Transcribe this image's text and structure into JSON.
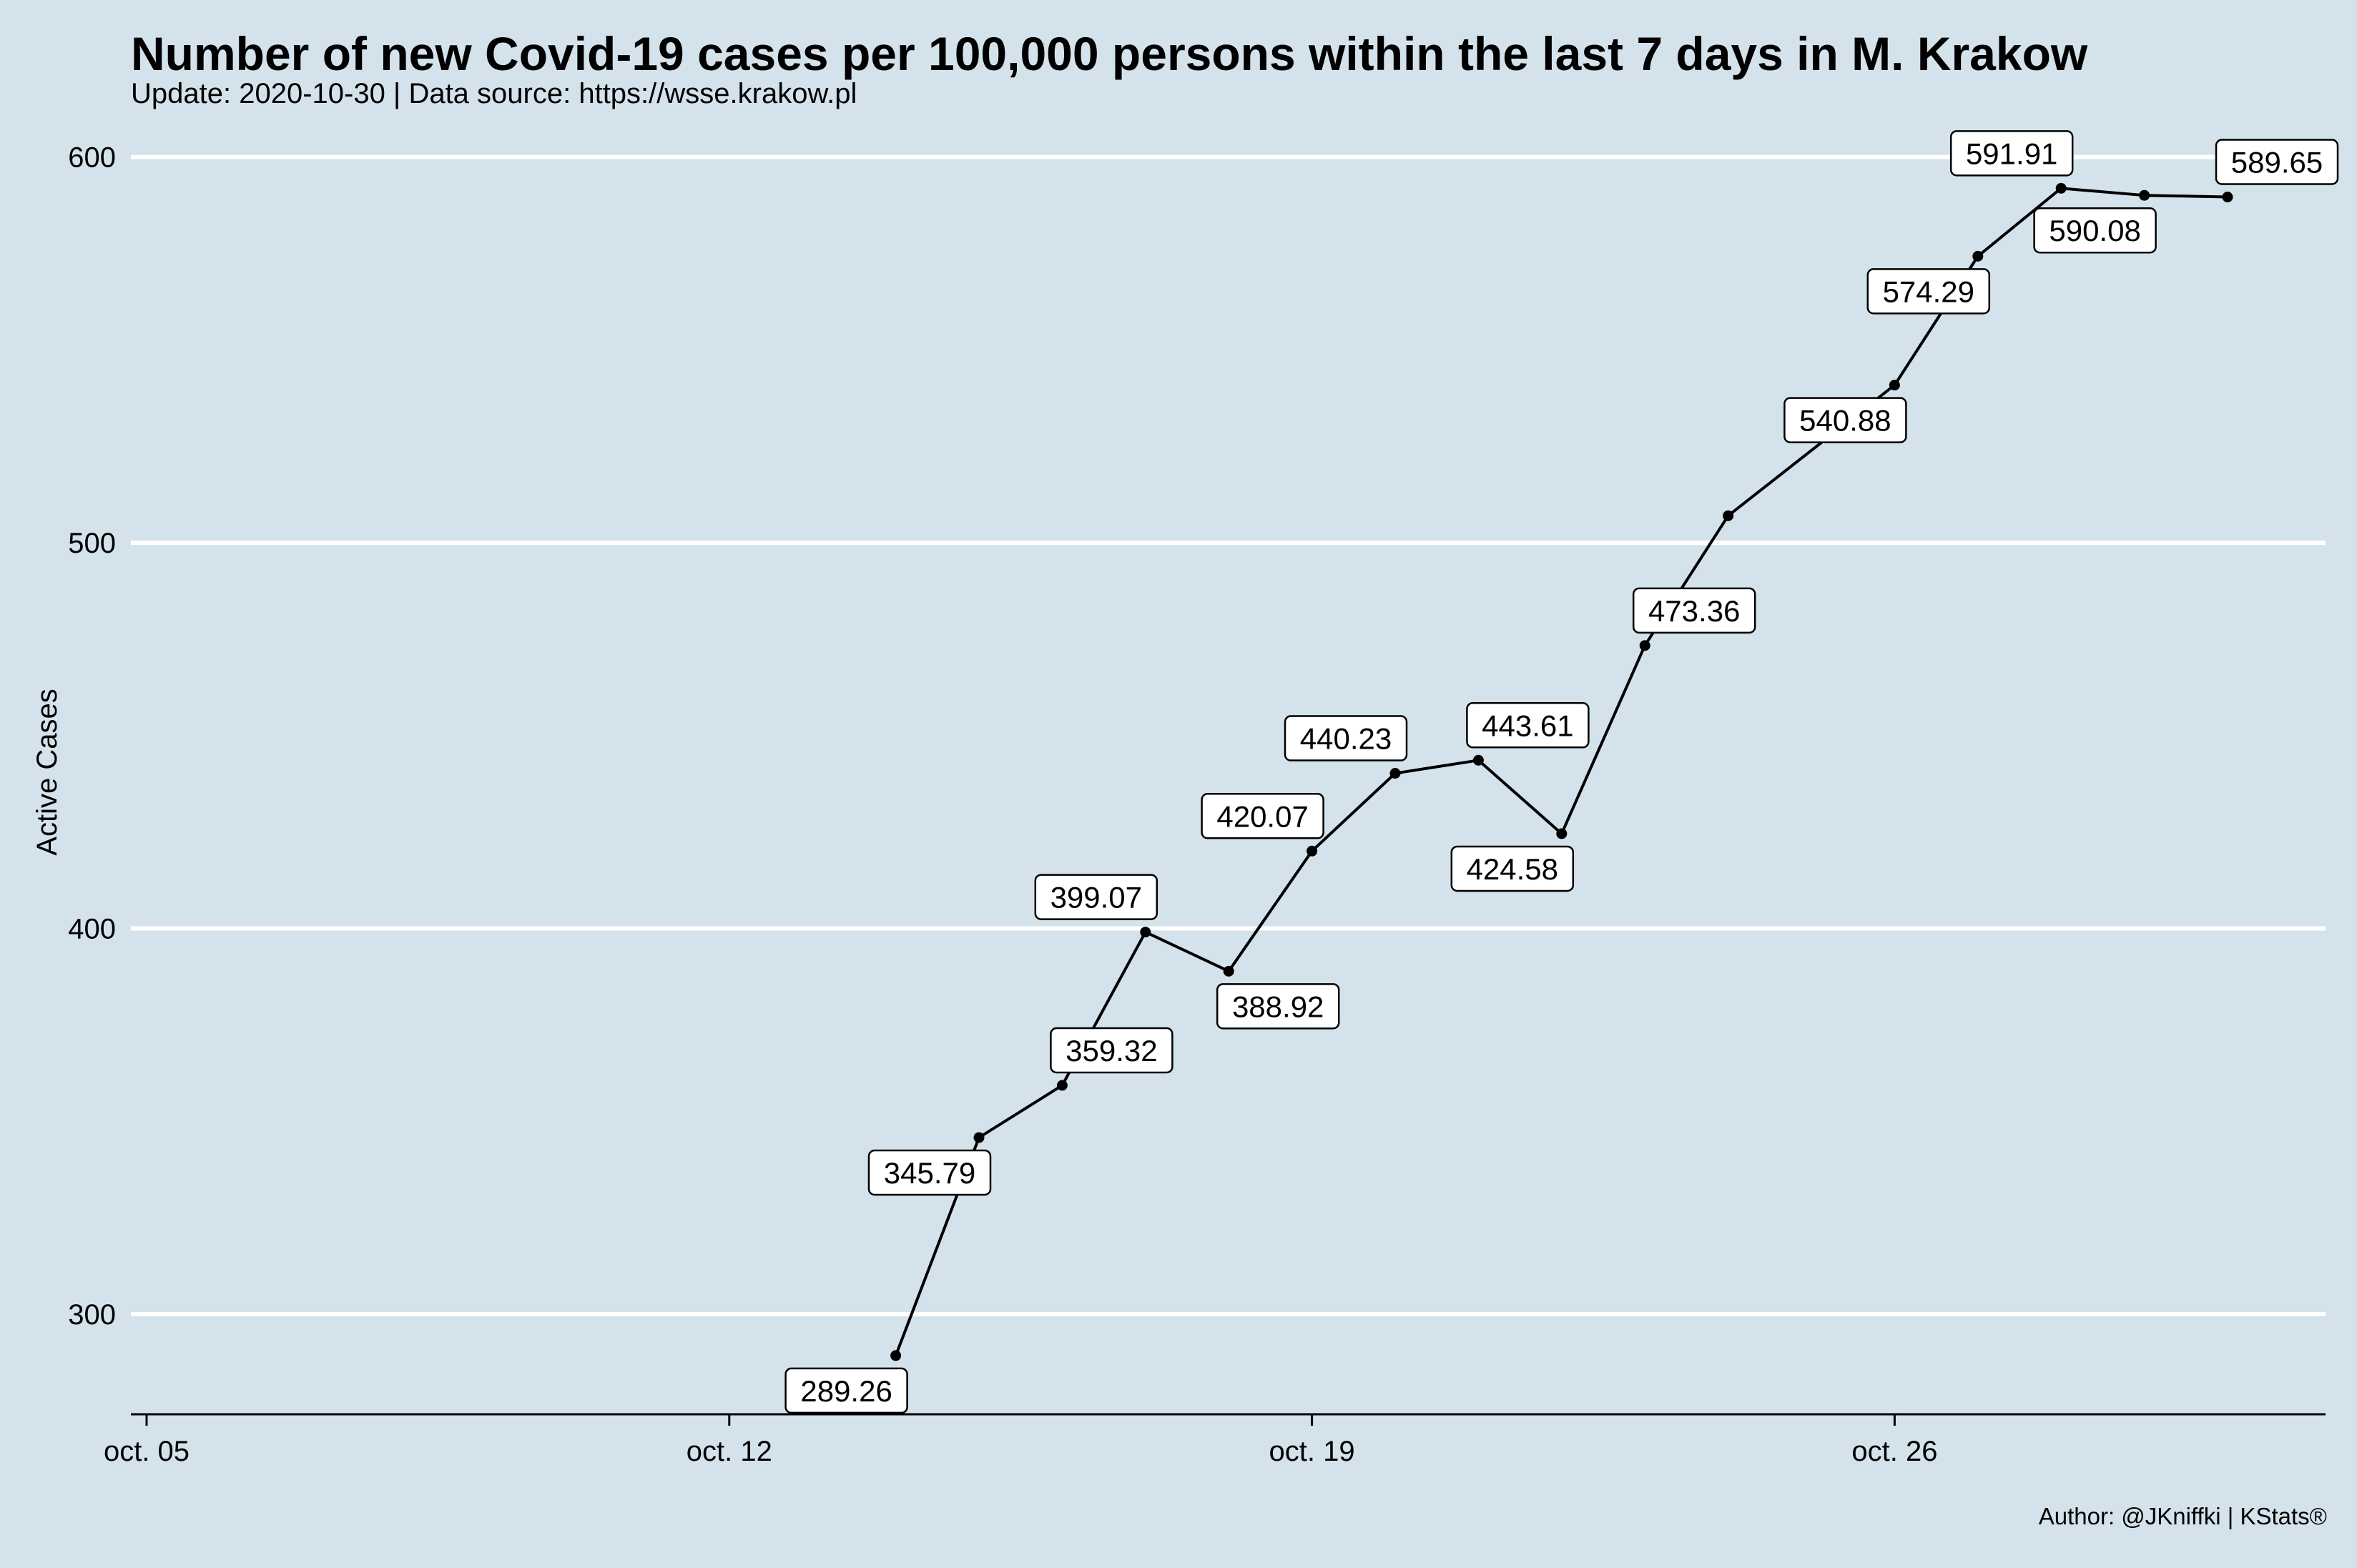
{
  "page": {
    "title": "Number of new Covid-19 cases per 100,000 persons within the last 7 days in M. Krakow",
    "subtitle": "Update: 2020-10-30 | Data source: https://wsse.krakow.pl",
    "caption": "Author: @JKniffki | KStats®"
  },
  "colors": {
    "background": "#d4e3eb",
    "gridline": "#ffffff",
    "line": "#000000",
    "label_box": "#ffffff"
  },
  "chart_data": {
    "type": "line",
    "title": "Number of new Covid-19 cases per 100,000 persons within the last 7 days in M. Krakow",
    "subtitle": "Update: 2020-10-30 | Data source: https://wsse.krakow.pl",
    "xlabel": "",
    "ylabel": "Active Cases",
    "xlim": [
      "2020-10-05",
      "2020-10-31"
    ],
    "ylim": [
      275,
      605
    ],
    "x_ticks": [
      {
        "date": "2020-10-05",
        "label": "oct. 05"
      },
      {
        "date": "2020-10-12",
        "label": "oct. 12"
      },
      {
        "date": "2020-10-19",
        "label": "oct. 19"
      },
      {
        "date": "2020-10-26",
        "label": "oct. 26"
      }
    ],
    "y_ticks": [
      300,
      400,
      500,
      600
    ],
    "grid": {
      "horizontal_major": true,
      "vertical": false
    },
    "legend": "none",
    "series": [
      {
        "points": [
          {
            "x": "2020-10-14",
            "y": 289.26,
            "label": "289.26",
            "shown": true,
            "label_pos": "below-left"
          },
          {
            "x": "2020-10-15",
            "y": 345.79,
            "label": "345.79",
            "shown": true,
            "label_pos": "below-left"
          },
          {
            "x": "2020-10-16",
            "y": 359.32,
            "label": "359.32",
            "shown": true,
            "label_pos": "above-right"
          },
          {
            "x": "2020-10-17",
            "y": 399.07,
            "label": "399.07",
            "shown": true,
            "label_pos": "above-left"
          },
          {
            "x": "2020-10-18",
            "y": 388.92,
            "label": "388.92",
            "shown": true,
            "label_pos": "below-right"
          },
          {
            "x": "2020-10-19",
            "y": 420.07,
            "label": "420.07",
            "shown": true,
            "label_pos": "above-left"
          },
          {
            "x": "2020-10-20",
            "y": 440.23,
            "label": "440.23",
            "shown": true,
            "label_pos": "above-left"
          },
          {
            "x": "2020-10-21",
            "y": 443.61,
            "label": "443.61",
            "shown": true,
            "label_pos": "above-right"
          },
          {
            "x": "2020-10-22",
            "y": 424.58,
            "label": "424.58",
            "shown": true,
            "label_pos": "below-left"
          },
          {
            "x": "2020-10-23",
            "y": 473.36,
            "label": "473.36",
            "shown": true,
            "label_pos": "above-right"
          },
          {
            "x": "2020-10-24",
            "y": 507.0,
            "label": "",
            "shown": false,
            "label_pos": "none"
          },
          {
            "x": "2020-10-26",
            "y": 540.88,
            "label": "540.88",
            "shown": true,
            "label_pos": "below-left"
          },
          {
            "x": "2020-10-27",
            "y": 574.29,
            "label": "574.29",
            "shown": true,
            "label_pos": "below-left"
          },
          {
            "x": "2020-10-28",
            "y": 591.91,
            "label": "591.91",
            "shown": true,
            "label_pos": "above-left"
          },
          {
            "x": "2020-10-29",
            "y": 590.08,
            "label": "590.08",
            "shown": true,
            "label_pos": "below-left"
          },
          {
            "x": "2020-10-30",
            "y": 589.65,
            "label": "589.65",
            "shown": true,
            "label_pos": "above-right"
          }
        ]
      }
    ]
  }
}
